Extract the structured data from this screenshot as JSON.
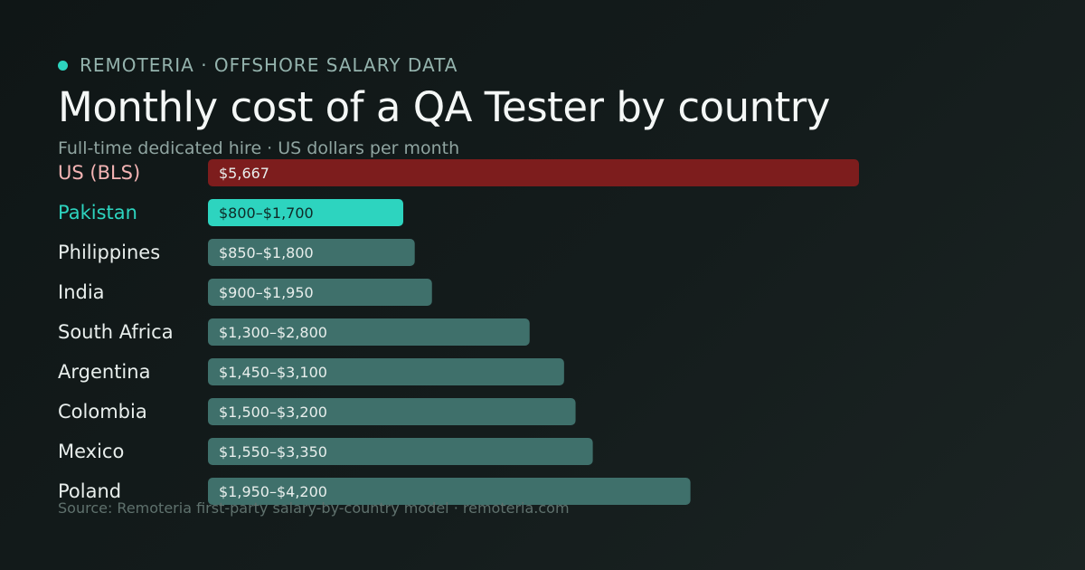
{
  "brand": "REMOTERIA · OFFSHORE SALARY DATA",
  "colors": {
    "accent": "#2dd4bf",
    "us_bar": "#7d1d1d",
    "us_label": "#f3b4b4",
    "default_bar": "#3f706b",
    "default_label": "#e8eeec",
    "bar_text": "#e8eeec",
    "highlight_bar_text": "#0f2a27"
  },
  "chart_data": {
    "type": "bar",
    "orientation": "horizontal",
    "title": "Monthly cost of a QA Tester by country",
    "subtitle": "Full-time dedicated hire · US dollars per month",
    "unit": "USD per month",
    "xlim": [
      0,
      7000
    ],
    "grid": false,
    "legend": "none",
    "series": [
      {
        "categories": [
          "US (BLS)",
          "Pakistan",
          "Philippines",
          "India",
          "South Africa",
          "Argentina",
          "Colombia",
          "Mexico",
          "Poland"
        ],
        "low": [
          5667,
          800,
          850,
          900,
          1300,
          1450,
          1500,
          1550,
          1950
        ],
        "high": [
          5667,
          1700,
          1800,
          1950,
          2800,
          3100,
          3200,
          3350,
          4200
        ],
        "labels": [
          "$5,667",
          "$800–$1,700",
          "$850–$1,800",
          "$900–$1,950",
          "$1,300–$2,800",
          "$1,450–$3,100",
          "$1,500–$3,200",
          "$1,550–$3,350",
          "$1,950–$4,200"
        ],
        "highlight": [
          "us",
          "accent",
          "",
          "",
          "",
          "",
          "",
          "",
          ""
        ]
      }
    ]
  },
  "source": "Source: Remoteria first-party salary-by-country model · remoteria.com"
}
